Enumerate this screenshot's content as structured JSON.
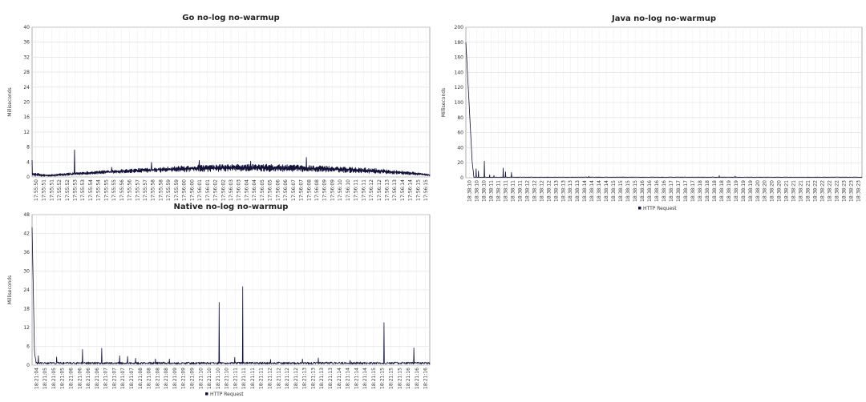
{
  "colors": {
    "series": "#13133a",
    "grid": "#dcdcdc",
    "axis": "#777777"
  },
  "chart_data": [
    {
      "id": "go",
      "type": "line",
      "title": "Go no-log no-warmup",
      "xlabel": "",
      "ylabel": "Milliseconds",
      "ylim": [
        0,
        40
      ],
      "yticks": [
        0,
        4,
        8,
        12,
        16,
        20,
        24,
        28,
        32,
        36,
        40
      ],
      "grid": true,
      "legend": null,
      "x_categories": [
        "17:55:50",
        "17:55:51",
        "17:55:51",
        "17:55:52",
        "17:55:52",
        "17:55:53",
        "17:55:53",
        "17:55:54",
        "17:55:54",
        "17:55:55",
        "17:55:55",
        "17:55:56",
        "17:55:56",
        "17:55:57",
        "17:55:57",
        "17:55:58",
        "17:55:58",
        "17:55:59",
        "17:55:59",
        "17:56:00",
        "17:56:00",
        "17:56:01",
        "17:56:01",
        "17:56:02",
        "17:56:02",
        "17:56:03",
        "17:56:03",
        "17:56:04",
        "17:56:04",
        "17:56:05",
        "17:56:05",
        "17:56:06",
        "17:56:06",
        "17:56:07",
        "17:56:07",
        "17:56:08",
        "17:56:08",
        "17:56:09",
        "17:56:09",
        "17:56:10",
        "17:56:10",
        "17:56:11",
        "17:56:11",
        "17:56:12",
        "17:56:12",
        "17:56:13",
        "17:56:13",
        "17:56:14",
        "17:56:14",
        "17:56:15",
        "17:56:15"
      ],
      "series": [
        {
          "name": "HTTP Request",
          "pattern": "noisy-envelope",
          "samples": 1200,
          "envelope_top": [
            [
              0,
              1.2
            ],
            [
              0.04,
              0.6
            ],
            [
              0.1,
              1.2
            ],
            [
              0.2,
              1.9
            ],
            [
              0.3,
              2.5
            ],
            [
              0.4,
              3.1
            ],
            [
              0.5,
              3.4
            ],
            [
              0.6,
              3.4
            ],
            [
              0.7,
              3.1
            ],
            [
              0.8,
              2.7
            ],
            [
              0.9,
              2.0
            ],
            [
              0.97,
              1.2
            ],
            [
              1,
              0.7
            ]
          ],
          "envelope_bottom": [
            [
              0,
              0.2
            ],
            [
              0.05,
              0.1
            ],
            [
              0.15,
              0.7
            ],
            [
              0.3,
              1.2
            ],
            [
              0.5,
              1.5
            ],
            [
              0.7,
              1.4
            ],
            [
              0.85,
              1.0
            ],
            [
              1,
              0.3
            ]
          ],
          "spikes": [
            [
              0,
              4.5
            ],
            [
              0.107,
              7.2
            ],
            [
              0.2,
              2.6
            ],
            [
              0.3,
              3.9
            ],
            [
              0.42,
              4.4
            ],
            [
              0.55,
              4.2
            ],
            [
              0.69,
              5.2
            ],
            [
              0.8,
              2.6
            ]
          ]
        }
      ]
    },
    {
      "id": "java",
      "type": "line",
      "title": "Java no-log no-warmup",
      "xlabel": "",
      "ylabel": "Milliseconds",
      "ylim": [
        0,
        200
      ],
      "yticks": [
        0,
        20,
        40,
        60,
        80,
        100,
        120,
        140,
        160,
        180,
        200
      ],
      "grid": true,
      "legend": "HTTP Request",
      "x_categories": [
        "18:38:10",
        "18:38:10",
        "18:38:10",
        "18:38:11",
        "18:38:11",
        "18:38:11",
        "18:38:11",
        "18:38:11",
        "18:38:12",
        "18:38:12",
        "18:38:12",
        "18:38:12",
        "18:38:13",
        "18:38:13",
        "18:38:13",
        "18:38:13",
        "18:38:14",
        "18:38:14",
        "18:38:14",
        "18:38:14",
        "18:38:15",
        "18:38:15",
        "18:38:15",
        "18:38:15",
        "18:38:16",
        "18:38:16",
        "18:38:16",
        "18:38:16",
        "18:38:17",
        "18:38:17",
        "18:38:17",
        "18:38:17",
        "18:38:18",
        "18:38:18",
        "18:38:18",
        "18:38:18",
        "18:38:19",
        "18:38:19",
        "18:38:19",
        "18:38:19",
        "18:38:20",
        "18:38:20",
        "18:38:20",
        "18:38:20",
        "18:38:21",
        "18:38:21",
        "18:38:21",
        "18:38:21",
        "18:38:22",
        "18:38:22",
        "18:38:22",
        "18:38:22",
        "18:38:23",
        "18:38:23",
        "18:38:23"
      ],
      "series": [
        {
          "name": "HTTP Request",
          "pattern": "spikes",
          "samples": 1200,
          "baseline": 0.5,
          "noise": 0.5,
          "decay": [
            [
              0,
              180
            ],
            [
              0.006,
              120
            ],
            [
              0.012,
              60
            ],
            [
              0.016,
              20
            ],
            [
              0.02,
              3
            ]
          ],
          "spikes": [
            [
              0.026,
              12
            ],
            [
              0.032,
              9
            ],
            [
              0.047,
              22
            ],
            [
              0.06,
              4
            ],
            [
              0.071,
              3
            ],
            [
              0.094,
              13
            ],
            [
              0.1,
              8
            ],
            [
              0.115,
              7
            ],
            [
              0.31,
              2
            ],
            [
              0.64,
              3
            ],
            [
              0.68,
              2
            ]
          ]
        }
      ]
    },
    {
      "id": "native",
      "type": "line",
      "title": "Native no-log no-warmup",
      "xlabel": "",
      "ylabel": "Milliseconds",
      "ylim": [
        0,
        48
      ],
      "yticks": [
        0,
        6,
        12,
        18,
        24,
        30,
        36,
        42,
        48
      ],
      "grid": true,
      "legend": "HTTP Request",
      "x_categories": [
        "18:21:04",
        "18:21:05",
        "18:21:05",
        "18:21:05",
        "18:21:06",
        "18:21:06",
        "18:21:06",
        "18:21:06",
        "18:21:07",
        "18:21:07",
        "18:21:07",
        "18:21:07",
        "18:21:08",
        "18:21:08",
        "18:21:08",
        "18:21:08",
        "18:21:09",
        "18:21:09",
        "18:21:09",
        "18:21:10",
        "18:21:10",
        "18:21:10",
        "18:21:10",
        "18:21:11",
        "18:21:11",
        "18:21:11",
        "18:21:11",
        "18:21:12",
        "18:21:12",
        "18:21:12",
        "18:21:12",
        "18:21:13",
        "18:21:13",
        "18:21:13",
        "18:21:13",
        "18:21:14",
        "18:21:14",
        "18:21:14",
        "18:21:14",
        "18:21:15",
        "18:21:15",
        "18:21:15",
        "18:21:15",
        "18:21:16",
        "18:21:16",
        "18:21:16"
      ],
      "series": [
        {
          "name": "HTTP Request",
          "pattern": "spikes",
          "samples": 1200,
          "baseline": 0.3,
          "noise": 0.7,
          "decay": [
            [
              0,
              44
            ],
            [
              0.003,
              25
            ],
            [
              0.006,
              4
            ],
            [
              0.01,
              1
            ]
          ],
          "spikes": [
            [
              0.016,
              3.0
            ],
            [
              0.062,
              2.6
            ],
            [
              0.127,
              5.0
            ],
            [
              0.175,
              5.4
            ],
            [
              0.22,
              3.0
            ],
            [
              0.24,
              2.8
            ],
            [
              0.26,
              2.2
            ],
            [
              0.31,
              2.0
            ],
            [
              0.345,
              2.0
            ],
            [
              0.47,
              20
            ],
            [
              0.51,
              2.5
            ],
            [
              0.53,
              25
            ],
            [
              0.6,
              1.8
            ],
            [
              0.68,
              2.0
            ],
            [
              0.72,
              2.3
            ],
            [
              0.8,
              1.5
            ],
            [
              0.885,
              13.6
            ],
            [
              0.96,
              5.5
            ]
          ]
        }
      ]
    }
  ]
}
